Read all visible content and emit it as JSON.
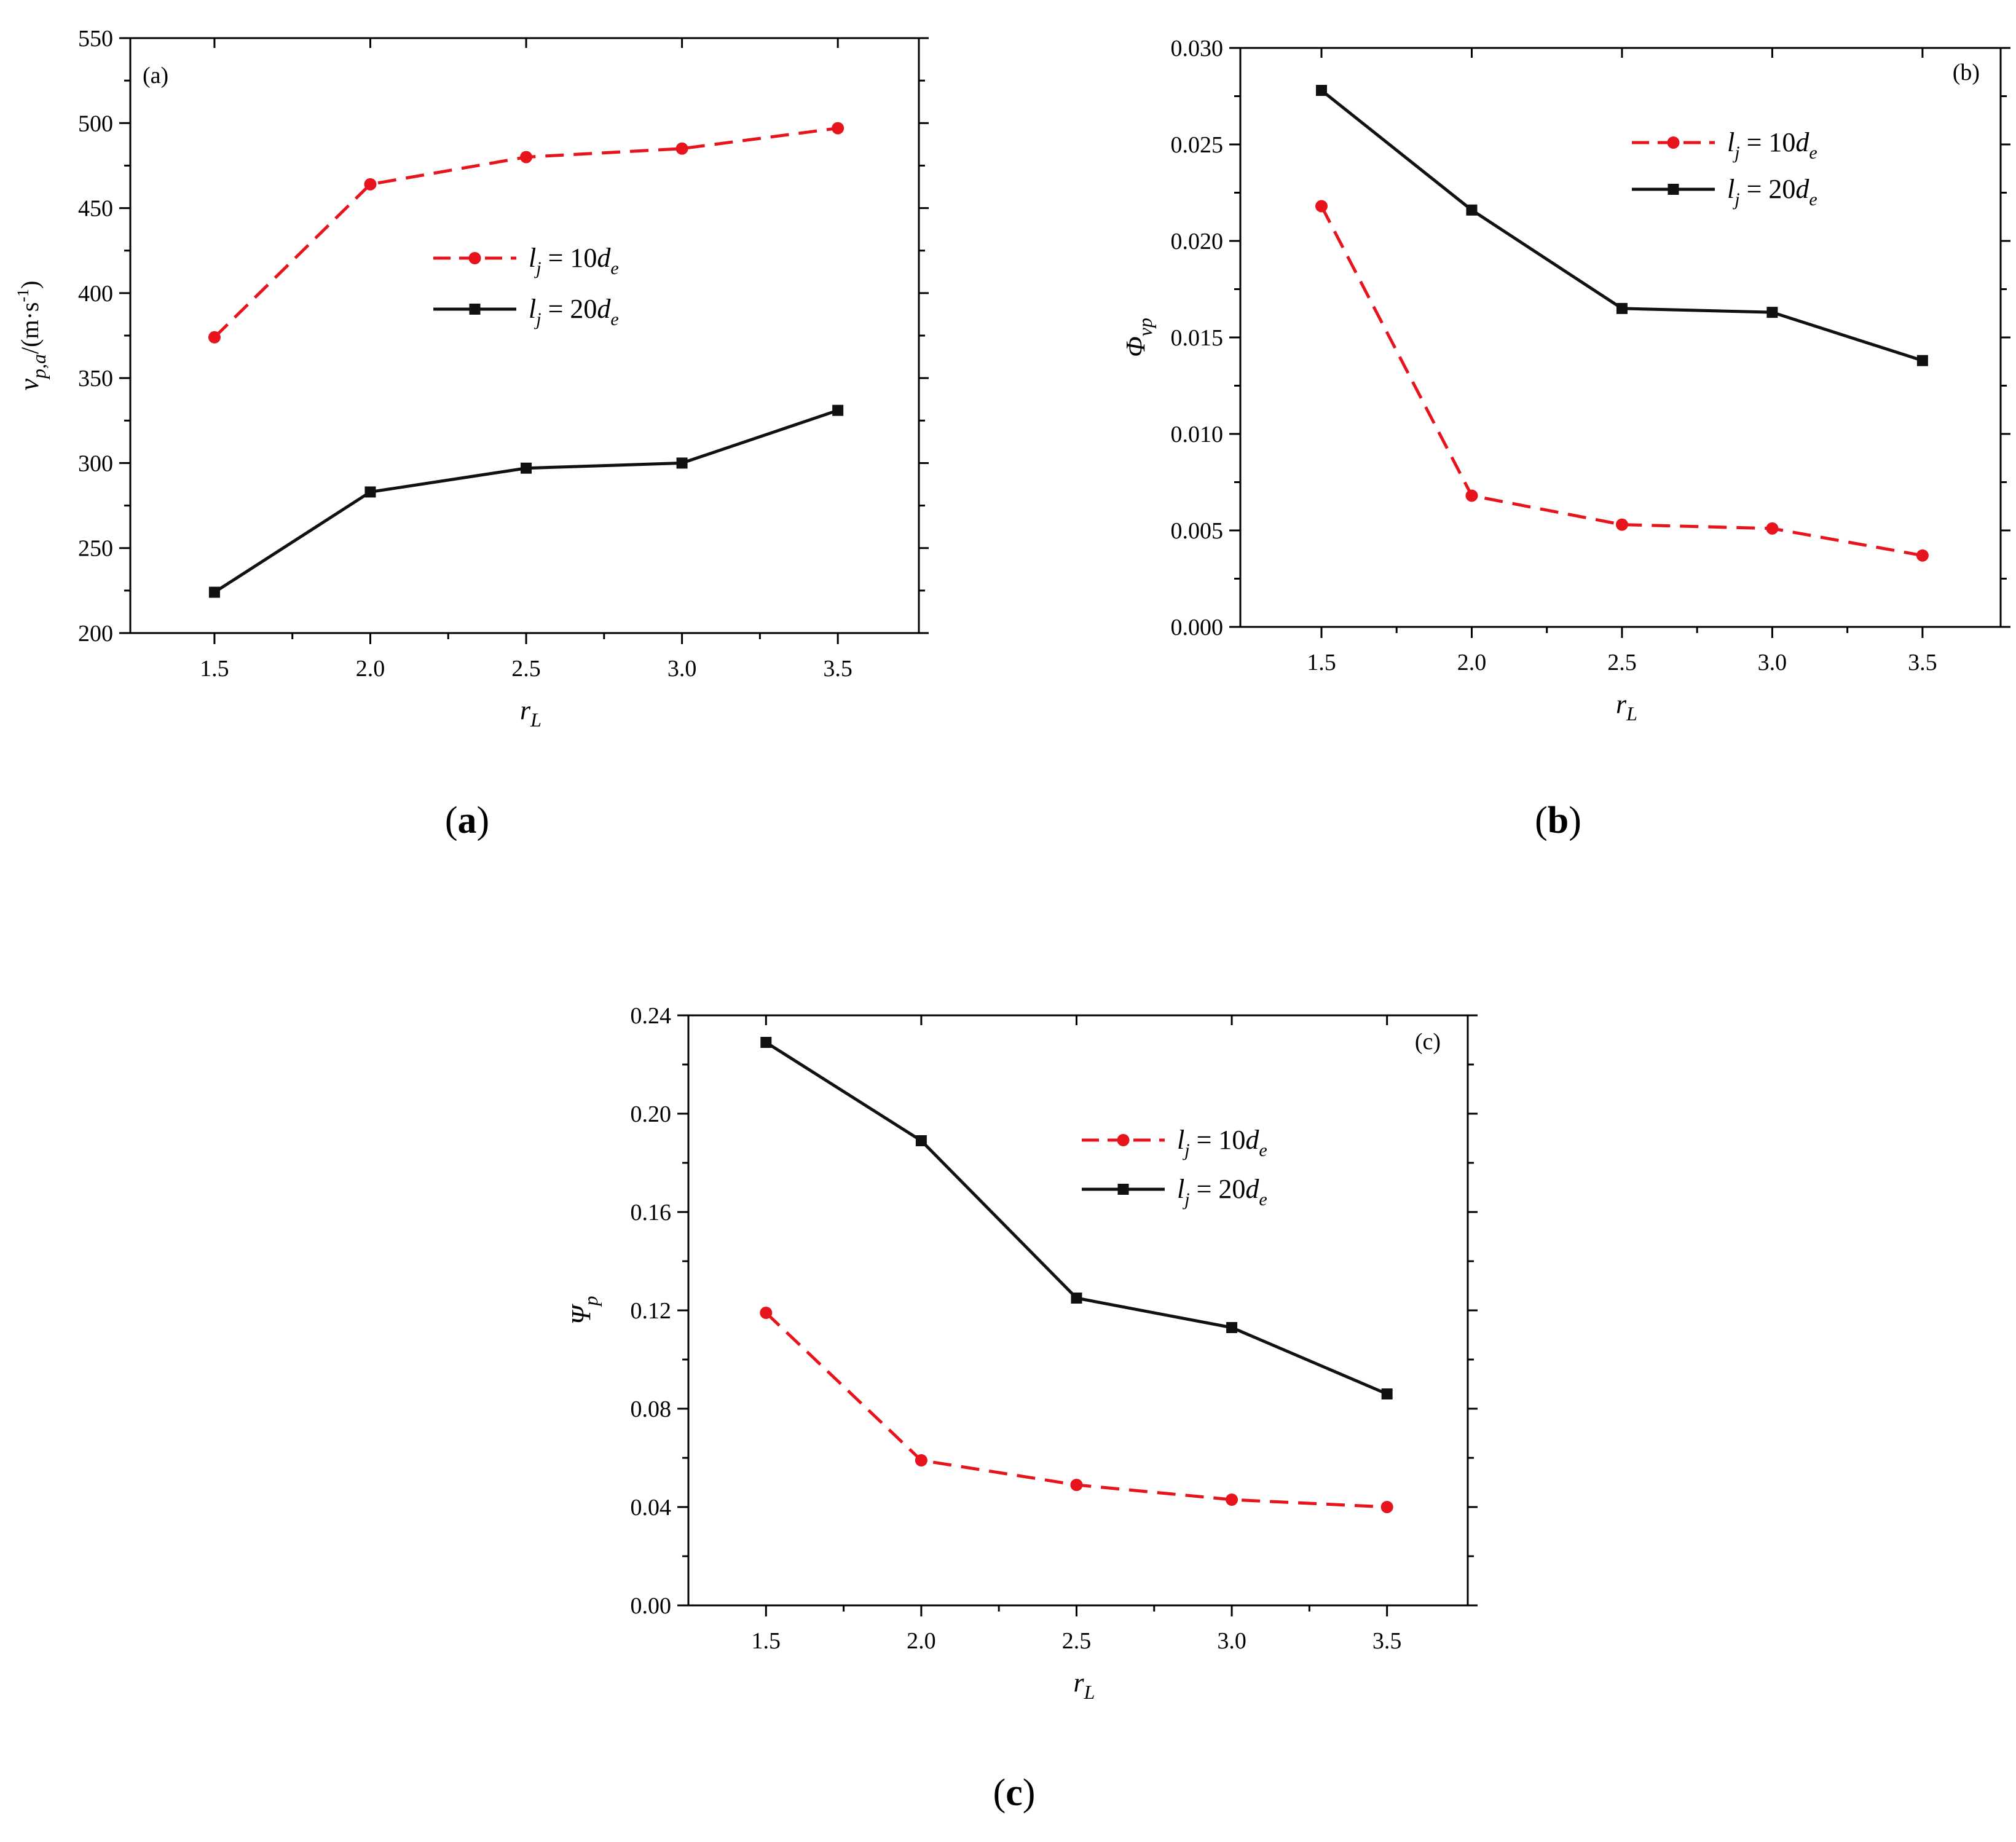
{
  "figure": {
    "captions": [
      "(a)",
      "(b)",
      "(c)"
    ]
  },
  "colors": {
    "series_10": "#e8141d",
    "series_20": "#111111",
    "axes": "#000000"
  },
  "chart_data": [
    {
      "id": "a",
      "type": "line",
      "panel_tag": "(a)",
      "caption_letter": "a",
      "xlabel": "r",
      "xlabel_sub": "L",
      "ylabel": "v",
      "ylabel_sub": "p,a",
      "ylabel_unit_pre": "/(m·s",
      "ylabel_unit_sup": "-1",
      "ylabel_unit_post": ")",
      "xlim": [
        1.23,
        3.76
      ],
      "ylim": [
        200,
        550
      ],
      "x_ticks": [
        1.5,
        2.0,
        2.5,
        3.0,
        3.5
      ],
      "x_tick_labels": [
        "1.5",
        "2.0",
        "2.5",
        "3.0",
        "3.5"
      ],
      "y_ticks": [
        200,
        250,
        300,
        350,
        400,
        450,
        500,
        550
      ],
      "y_tick_labels": [
        "200",
        "250",
        "300",
        "350",
        "400",
        "450",
        "500",
        "550"
      ],
      "legend_position": "center",
      "series": [
        {
          "name": "l_j = 10d_e",
          "legend_prefix": "l",
          "legend_sub1": "j",
          "legend_mid": " = 10",
          "legend_var": "d",
          "legend_sub2": "e",
          "color": "#e8141d",
          "dash": "dashed",
          "marker": "circle",
          "x": [
            1.5,
            2.0,
            2.5,
            3.0,
            3.5
          ],
          "values": [
            374,
            464,
            480,
            485,
            497
          ]
        },
        {
          "name": "l_j = 20d_e",
          "legend_prefix": "l",
          "legend_sub1": "j",
          "legend_mid": " = 20",
          "legend_var": "d",
          "legend_sub2": "e",
          "color": "#111111",
          "dash": "solid",
          "marker": "square",
          "x": [
            1.5,
            2.0,
            2.5,
            3.0,
            3.5
          ],
          "values": [
            224,
            283,
            297,
            300,
            331
          ]
        }
      ]
    },
    {
      "id": "b",
      "type": "line",
      "panel_tag": "(b)",
      "caption_letter": "b",
      "xlabel": "r",
      "xlabel_sub": "L",
      "ylabel": "Φ",
      "ylabel_sub": "vp",
      "ylabel_unit_pre": "",
      "ylabel_unit_sup": "",
      "ylabel_unit_post": "",
      "xlim": [
        1.23,
        3.76
      ],
      "ylim": [
        0.0,
        0.03
      ],
      "x_ticks": [
        1.5,
        2.0,
        2.5,
        3.0,
        3.5
      ],
      "x_tick_labels": [
        "1.5",
        "2.0",
        "2.5",
        "3.0",
        "3.5"
      ],
      "y_ticks": [
        0.0,
        0.005,
        0.01,
        0.015,
        0.02,
        0.025,
        0.03
      ],
      "y_tick_labels": [
        "0.000",
        "0.005",
        "0.010",
        "0.015",
        "0.020",
        "0.025",
        "0.030"
      ],
      "legend_position": "upper-center",
      "series": [
        {
          "name": "l_j = 10d_e",
          "legend_prefix": "l",
          "legend_sub1": "j",
          "legend_mid": " = 10",
          "legend_var": "d",
          "legend_sub2": "e",
          "color": "#e8141d",
          "dash": "dashed",
          "marker": "circle",
          "x": [
            1.5,
            2.0,
            2.5,
            3.0,
            3.5
          ],
          "values": [
            0.0218,
            0.0068,
            0.0053,
            0.0051,
            0.0037
          ]
        },
        {
          "name": "l_j = 20d_e",
          "legend_prefix": "l",
          "legend_sub1": "j",
          "legend_mid": " = 20",
          "legend_var": "d",
          "legend_sub2": "e",
          "color": "#111111",
          "dash": "solid",
          "marker": "square",
          "x": [
            1.5,
            2.0,
            2.5,
            3.0,
            3.5
          ],
          "values": [
            0.0278,
            0.0216,
            0.0165,
            0.0163,
            0.0138
          ]
        }
      ]
    },
    {
      "id": "c",
      "type": "line",
      "panel_tag": "(c)",
      "caption_letter": "c",
      "xlabel": "r",
      "xlabel_sub": "L",
      "ylabel": "Ψ",
      "ylabel_sub": "p",
      "ylabel_unit_pre": "",
      "ylabel_unit_sup": "",
      "ylabel_unit_post": "",
      "xlim": [
        1.25,
        3.76
      ],
      "ylim": [
        0.0,
        0.24
      ],
      "x_ticks": [
        1.5,
        2.0,
        2.5,
        3.0,
        3.5
      ],
      "x_tick_labels": [
        "1.5",
        "2.0",
        "2.5",
        "3.0",
        "3.5"
      ],
      "y_ticks": [
        0.0,
        0.04,
        0.08,
        0.12,
        0.16,
        0.2,
        0.24
      ],
      "y_tick_labels": [
        "0.00",
        "0.04",
        "0.08",
        "0.12",
        "0.16",
        "0.20",
        "0.24"
      ],
      "legend_position": "upper-center",
      "series": [
        {
          "name": "l_j = 10d_e",
          "legend_prefix": "l",
          "legend_sub1": "j",
          "legend_mid": " = 10",
          "legend_var": "d",
          "legend_sub2": "e",
          "color": "#e8141d",
          "dash": "dashed",
          "marker": "circle",
          "x": [
            1.5,
            2.0,
            2.5,
            3.0,
            3.5
          ],
          "values": [
            0.119,
            0.059,
            0.049,
            0.043,
            0.04
          ]
        },
        {
          "name": "l_j = 20d_e",
          "legend_prefix": "l",
          "legend_sub1": "j",
          "legend_mid": " = 20",
          "legend_var": "d",
          "legend_sub2": "e",
          "color": "#111111",
          "dash": "solid",
          "marker": "square",
          "x": [
            1.5,
            2.0,
            2.5,
            3.0,
            3.5
          ],
          "values": [
            0.229,
            0.189,
            0.125,
            0.113,
            0.086
          ]
        }
      ]
    }
  ]
}
